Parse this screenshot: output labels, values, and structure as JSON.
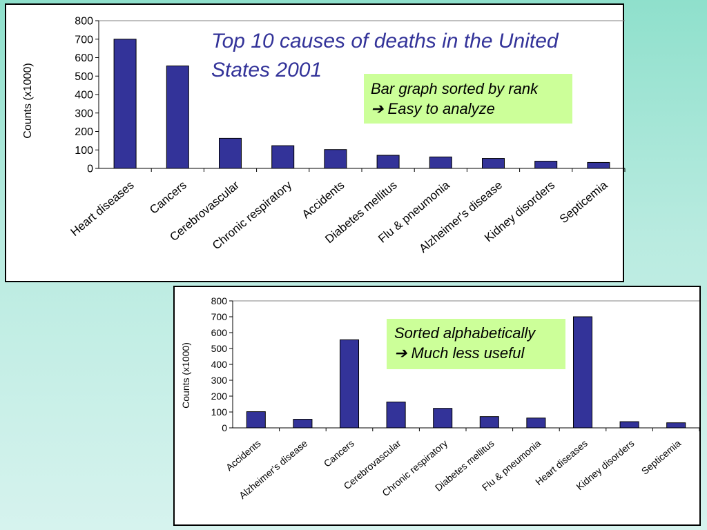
{
  "chart_data": [
    {
      "type": "bar",
      "title": "Top 10 causes of deaths in the United States 2001",
      "annotation": [
        "Bar graph sorted by rank",
        "➔ Easy to analyze"
      ],
      "ylabel": "Counts (x1000)",
      "xlabel": "",
      "ylim": [
        0,
        800
      ],
      "yticks": [
        0,
        100,
        200,
        300,
        400,
        500,
        600,
        700,
        800
      ],
      "grid": false,
      "bar_color": "#333399",
      "categories": [
        "Heart diseases",
        "Cancers",
        "Cerebrovascular",
        "Chronic respiratory",
        "Accidents",
        "Diabetes mellitus",
        "Flu & pneumonia",
        "Alzheimer's disease",
        "Kidney disorders",
        "Septicemia"
      ],
      "values": [
        700,
        555,
        163,
        123,
        102,
        71,
        62,
        54,
        39,
        32
      ]
    },
    {
      "type": "bar",
      "title": "",
      "annotation": [
        "Sorted alphabetically",
        "➔ Much less useful"
      ],
      "ylabel": "Counts (x1000)",
      "xlabel": "",
      "ylim": [
        0,
        800
      ],
      "yticks": [
        0,
        100,
        200,
        300,
        400,
        500,
        600,
        700,
        800
      ],
      "grid": false,
      "bar_color": "#333399",
      "categories": [
        "Accidents",
        "Alzheimer's disease",
        "Cancers",
        "Cerebrovascular",
        "Chronic respiratory",
        "Diabetes mellitus",
        "Flu & pneumonia",
        "Heart diseases",
        "Kidney disorders",
        "Septicemia"
      ],
      "values": [
        102,
        54,
        555,
        163,
        123,
        71,
        62,
        700,
        39,
        32
      ]
    }
  ],
  "colors": {
    "note_background": "#ccff99",
    "title_color": "#333399",
    "background": "#a8e6d8"
  }
}
